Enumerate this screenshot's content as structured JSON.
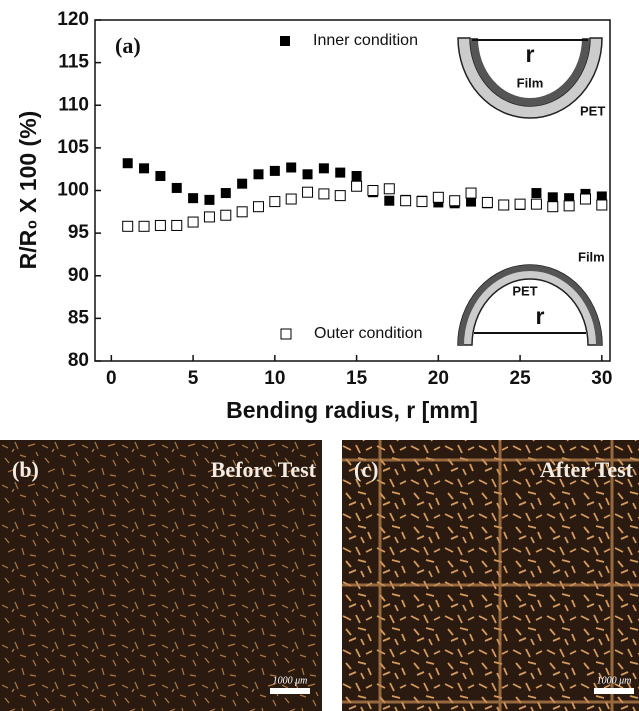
{
  "chart_data": {
    "type": "scatter",
    "panel_label": "(a)",
    "x_label": "Bending radius, r [mm]",
    "y_label": "R/R₀ X 100 (%)",
    "x": [
      1,
      2,
      3,
      4,
      5,
      6,
      7,
      8,
      9,
      10,
      11,
      12,
      13,
      14,
      15,
      16,
      17,
      18,
      19,
      20,
      21,
      22,
      23,
      24,
      25,
      26,
      27,
      28,
      29,
      30
    ],
    "series": [
      {
        "name": "Inner condition",
        "color": "#000000",
        "marker": "filled-square",
        "values": [
          103.2,
          102.6,
          101.7,
          100.3,
          99.1,
          98.9,
          99.7,
          100.8,
          101.9,
          102.3,
          102.7,
          101.9,
          102.6,
          102.1,
          101.7,
          99.8,
          98.8,
          98.9,
          98.8,
          98.6,
          98.5,
          98.7,
          98.5,
          98.3,
          98.3,
          99.7,
          99.2,
          99.1,
          99.6,
          99.3
        ]
      },
      {
        "name": "Outer condition",
        "color": "#000000",
        "marker": "hollow-square",
        "values": [
          95.8,
          95.8,
          95.9,
          95.9,
          96.3,
          96.9,
          97.1,
          97.5,
          98.1,
          98.7,
          99.0,
          99.8,
          99.6,
          99.4,
          100.5,
          100.0,
          100.2,
          98.8,
          98.7,
          99.2,
          98.8,
          99.7,
          98.6,
          98.3,
          98.4,
          98.4,
          98.1,
          98.2,
          99.0,
          98.3
        ]
      }
    ],
    "xlim": [
      -1,
      30.5
    ],
    "xticks": [
      0,
      5,
      10,
      15,
      20,
      25,
      30
    ],
    "ylim": [
      80,
      120
    ],
    "yticks": [
      80,
      85,
      90,
      95,
      100,
      105,
      110,
      115,
      120
    ],
    "insets": [
      {
        "r": "r",
        "inner": "Film",
        "outer": "PET"
      },
      {
        "r": "r",
        "inner": "PET",
        "outer": "Film"
      }
    ]
  },
  "images": [
    {
      "label": "(b)",
      "caption": "Before Test",
      "scale": "1000 μm"
    },
    {
      "label": "(c)",
      "caption": "After Test",
      "scale": "1000 μm"
    }
  ]
}
